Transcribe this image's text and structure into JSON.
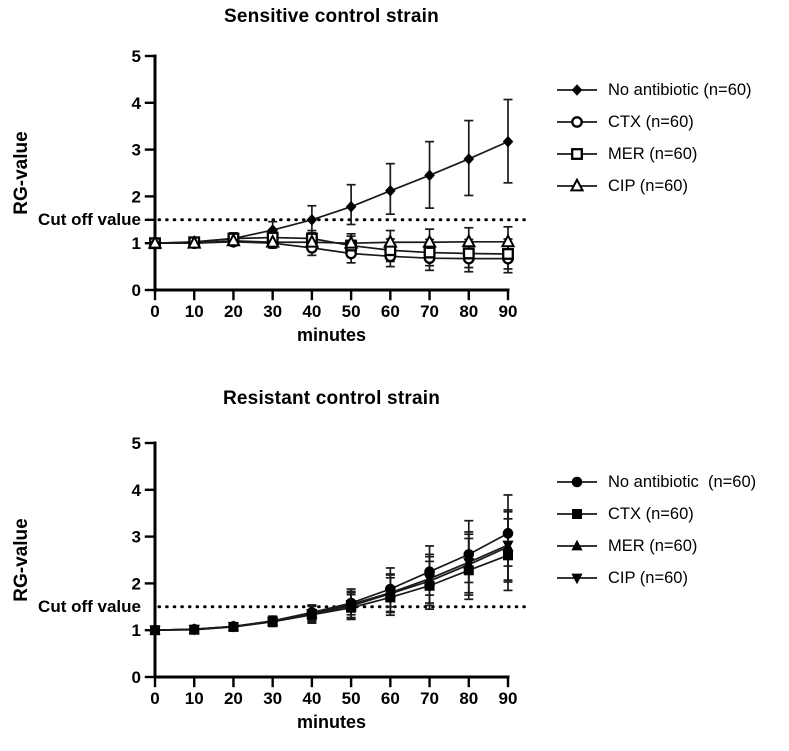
{
  "figure": {
    "background_color": "#ffffff",
    "ink_color": "#000000",
    "line_color": "#1a1a1a"
  },
  "chart_data": [
    {
      "type": "line",
      "title": "Sensitive control strain",
      "xlabel": "minutes",
      "ylabel": "RG-value",
      "cutoff": {
        "label": "Cut off value",
        "value": 1.5,
        "axis_tick": true
      },
      "x": [
        0,
        10,
        20,
        30,
        40,
        50,
        60,
        70,
        80,
        90
      ],
      "xlim": [
        0,
        90
      ],
      "ylim": [
        0,
        5
      ],
      "xticks": [
        0,
        10,
        20,
        30,
        40,
        50,
        60,
        70,
        80,
        90
      ],
      "yticks": [
        0,
        1,
        2,
        3,
        4,
        5
      ],
      "grid": false,
      "legend_position": "right",
      "error_bars": true,
      "series": [
        {
          "name": "No antibiotic (n=60)",
          "marker": "diamond-filled",
          "values": [
            1.0,
            1.03,
            1.1,
            1.28,
            1.5,
            1.78,
            2.12,
            2.45,
            2.8,
            3.17
          ],
          "err_plus": [
            0.05,
            0.06,
            0.12,
            0.18,
            0.3,
            0.47,
            0.58,
            0.72,
            0.82,
            0.9
          ],
          "err_minus": [
            0.05,
            0.06,
            0.12,
            0.16,
            0.28,
            0.38,
            0.5,
            0.7,
            0.78,
            0.88
          ]
        },
        {
          "name": "CTX (n=60)",
          "marker": "circle-open",
          "values": [
            1.0,
            1.0,
            1.03,
            1.0,
            0.9,
            0.78,
            0.72,
            0.68,
            0.67,
            0.67
          ],
          "err_plus": [
            0.04,
            0.05,
            0.08,
            0.1,
            0.16,
            0.2,
            0.22,
            0.26,
            0.28,
            0.3
          ],
          "err_minus": [
            0.04,
            0.05,
            0.08,
            0.1,
            0.16,
            0.2,
            0.22,
            0.26,
            0.28,
            0.3
          ]
        },
        {
          "name": "MER (n=60)",
          "marker": "square-open",
          "values": [
            1.0,
            1.02,
            1.1,
            1.12,
            1.1,
            0.95,
            0.85,
            0.8,
            0.78,
            0.77
          ],
          "err_plus": [
            0.04,
            0.06,
            0.1,
            0.12,
            0.17,
            0.2,
            0.24,
            0.28,
            0.3,
            0.32
          ],
          "err_minus": [
            0.04,
            0.06,
            0.1,
            0.12,
            0.17,
            0.2,
            0.24,
            0.28,
            0.3,
            0.32
          ]
        },
        {
          "name": "CIP (n=60)",
          "marker": "triangle-up-open",
          "values": [
            1.0,
            1.0,
            1.05,
            1.02,
            1.02,
            1.0,
            1.02,
            1.02,
            1.03,
            1.03
          ],
          "err_plus": [
            0.04,
            0.05,
            0.08,
            0.12,
            0.15,
            0.2,
            0.25,
            0.28,
            0.3,
            0.32
          ],
          "err_minus": [
            0.04,
            0.05,
            0.08,
            0.12,
            0.15,
            0.2,
            0.25,
            0.28,
            0.3,
            0.32
          ]
        }
      ]
    },
    {
      "type": "line",
      "title": "Resistant control strain",
      "xlabel": "minutes",
      "ylabel": "RG-value",
      "cutoff": {
        "label": "Cut off value",
        "value": 1.5,
        "axis_tick": false
      },
      "x": [
        0,
        10,
        20,
        30,
        40,
        50,
        60,
        70,
        80,
        90
      ],
      "xlim": [
        0,
        90
      ],
      "ylim": [
        0,
        5
      ],
      "xticks": [
        0,
        10,
        20,
        30,
        40,
        50,
        60,
        70,
        80,
        90
      ],
      "yticks": [
        0,
        1,
        2,
        3,
        4,
        5
      ],
      "grid": false,
      "legend_position": "right",
      "error_bars": true,
      "series": [
        {
          "name": "No antibiotic  (n=60)",
          "marker": "circle-filled",
          "values": [
            1.0,
            1.02,
            1.08,
            1.2,
            1.38,
            1.58,
            1.88,
            2.25,
            2.62,
            3.07
          ],
          "err_plus": [
            0.03,
            0.04,
            0.06,
            0.1,
            0.16,
            0.3,
            0.45,
            0.55,
            0.72,
            0.82
          ],
          "err_minus": [
            0.03,
            0.04,
            0.06,
            0.1,
            0.16,
            0.25,
            0.38,
            0.5,
            0.6,
            0.7
          ]
        },
        {
          "name": "CTX (n=60)",
          "marker": "square-filled",
          "values": [
            1.0,
            1.01,
            1.07,
            1.18,
            1.33,
            1.48,
            1.7,
            1.95,
            2.28,
            2.6
          ],
          "err_plus": [
            0.03,
            0.04,
            0.06,
            0.1,
            0.18,
            0.28,
            0.42,
            0.52,
            0.68,
            0.78
          ],
          "err_minus": [
            0.03,
            0.04,
            0.06,
            0.1,
            0.18,
            0.25,
            0.38,
            0.5,
            0.62,
            0.75
          ]
        },
        {
          "name": "MER (n=60)",
          "marker": "triangle-up-filled",
          "values": [
            1.0,
            1.02,
            1.08,
            1.19,
            1.35,
            1.52,
            1.78,
            2.05,
            2.4,
            2.78
          ],
          "err_plus": [
            0.03,
            0.04,
            0.06,
            0.1,
            0.17,
            0.28,
            0.4,
            0.52,
            0.65,
            0.75
          ],
          "err_minus": [
            0.03,
            0.04,
            0.06,
            0.1,
            0.17,
            0.28,
            0.4,
            0.52,
            0.65,
            0.75
          ]
        },
        {
          "name": "CIP (n=60)",
          "marker": "triangle-down-filled",
          "values": [
            1.0,
            1.02,
            1.08,
            1.19,
            1.36,
            1.55,
            1.8,
            2.1,
            2.45,
            2.82
          ],
          "err_plus": [
            0.03,
            0.04,
            0.06,
            0.1,
            0.17,
            0.28,
            0.4,
            0.52,
            0.65,
            0.75
          ],
          "err_minus": [
            0.03,
            0.04,
            0.06,
            0.1,
            0.17,
            0.28,
            0.4,
            0.52,
            0.65,
            0.75
          ]
        }
      ]
    }
  ]
}
